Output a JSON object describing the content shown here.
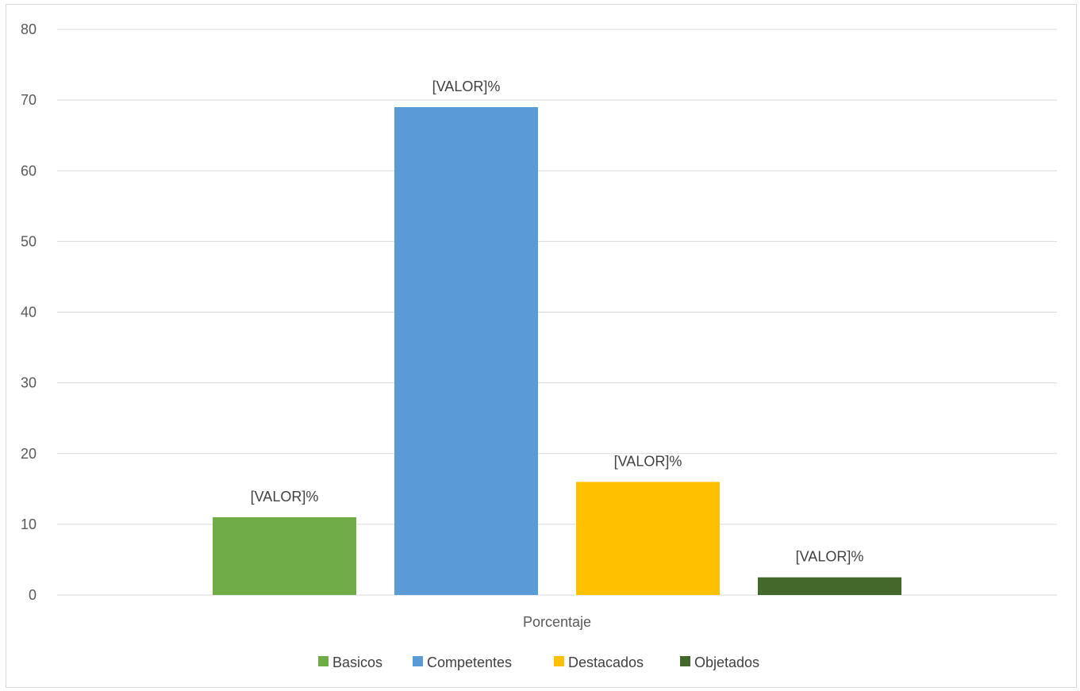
{
  "chart_data": {
    "type": "bar",
    "categories": [
      "Porcentaje"
    ],
    "series": [
      {
        "name": "Basicos",
        "color": "#70ad47",
        "values": [
          11
        ],
        "data_label": "[VALOR]%"
      },
      {
        "name": "Competentes",
        "color": "#5b9bd5",
        "values": [
          69
        ],
        "data_label": "[VALOR]%"
      },
      {
        "name": "Destacados",
        "color": "#ffc000",
        "values": [
          16
        ],
        "data_label": "[VALOR]%"
      },
      {
        "name": "Objetados",
        "color": "#43682b",
        "values": [
          2.5
        ],
        "data_label": "[VALOR]%"
      }
    ],
    "yticks": [
      0,
      10,
      20,
      30,
      40,
      50,
      60,
      70,
      80
    ],
    "ylim": [
      0,
      80
    ],
    "grid": true,
    "legend_position": "bottom",
    "title": "",
    "xlabel": "",
    "ylabel": ""
  }
}
